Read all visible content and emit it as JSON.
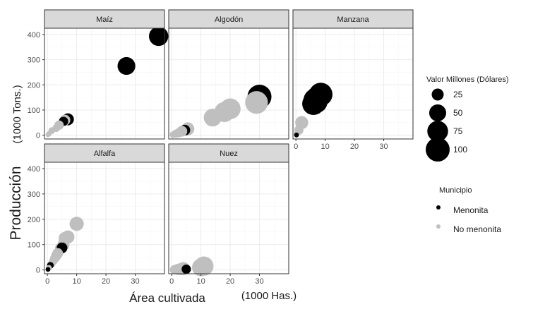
{
  "chart_data": {
    "type": "scatter",
    "xlabel": "Área cultivada",
    "xlabel_unit": "(1000 Has.)",
    "ylabel": "Producción",
    "ylabel_unit": "(1000 Tons.)",
    "xlim": [
      -1,
      40
    ],
    "ylim": [
      -15,
      425
    ],
    "x_ticks": [
      0,
      10,
      20,
      30
    ],
    "y_ticks": [
      0,
      100,
      200,
      300,
      400
    ],
    "grid": true,
    "colors": {
      "Menonita": "#000000",
      "No menonita": "#bfbfbf",
      "strip": "#d9d9d9",
      "border": "#333333",
      "grid_major": "#ebebeb"
    },
    "facets": [
      {
        "name": "Maíz",
        "points": [
          {
            "x": 38,
            "y": 393,
            "value": 65,
            "group": "Menonita"
          },
          {
            "x": 27,
            "y": 275,
            "value": 55,
            "group": "Menonita"
          },
          {
            "x": 7,
            "y": 63,
            "value": 25,
            "group": "Menonita"
          },
          {
            "x": 5.5,
            "y": 55,
            "value": 15,
            "group": "Menonita"
          },
          {
            "x": 6,
            "y": 60,
            "value": 20,
            "group": "No menonita"
          },
          {
            "x": 4,
            "y": 40,
            "value": 15,
            "group": "No menonita"
          },
          {
            "x": 3,
            "y": 28,
            "value": 10,
            "group": "No menonita"
          },
          {
            "x": 1.5,
            "y": 18,
            "value": 8,
            "group": "No menonita"
          },
          {
            "x": 0.5,
            "y": 5,
            "value": 5,
            "group": "No menonita"
          },
          {
            "x": 0.2,
            "y": 2,
            "value": 4,
            "group": "No menonita"
          }
        ]
      },
      {
        "name": "Algodón",
        "points": [
          {
            "x": 30,
            "y": 153,
            "value": 100,
            "group": "Menonita"
          },
          {
            "x": 29,
            "y": 130,
            "value": 90,
            "group": "No menonita"
          },
          {
            "x": 20,
            "y": 105,
            "value": 75,
            "group": "No menonita"
          },
          {
            "x": 18,
            "y": 92,
            "value": 70,
            "group": "No menonita"
          },
          {
            "x": 14,
            "y": 70,
            "value": 55,
            "group": "No menonita"
          },
          {
            "x": 5.5,
            "y": 25,
            "value": 30,
            "group": "No menonita"
          },
          {
            "x": 4.5,
            "y": 20,
            "value": 20,
            "group": "Menonita"
          },
          {
            "x": 3.5,
            "y": 16,
            "value": 20,
            "group": "No menonita"
          },
          {
            "x": 2.5,
            "y": 10,
            "value": 15,
            "group": "No menonita"
          },
          {
            "x": 1.5,
            "y": 6,
            "value": 12,
            "group": "No menonita"
          },
          {
            "x": 0.5,
            "y": 2,
            "value": 8,
            "group": "No menonita"
          }
        ]
      },
      {
        "name": "Manzana",
        "points": [
          {
            "x": 8.5,
            "y": 162,
            "value": 95,
            "group": "Menonita"
          },
          {
            "x": 7.5,
            "y": 150,
            "value": 92,
            "group": "Menonita"
          },
          {
            "x": 6.5,
            "y": 140,
            "value": 90,
            "group": "Menonita"
          },
          {
            "x": 6,
            "y": 125,
            "value": 88,
            "group": "Menonita"
          },
          {
            "x": 7,
            "y": 132,
            "value": 85,
            "group": "Menonita"
          },
          {
            "x": 2,
            "y": 50,
            "value": 30,
            "group": "No menonita"
          },
          {
            "x": 1,
            "y": 20,
            "value": 15,
            "group": "No menonita"
          },
          {
            "x": 0.3,
            "y": 5,
            "value": 6,
            "group": "No menonita"
          },
          {
            "x": 0.2,
            "y": 1,
            "value": 4,
            "group": "Menonita"
          }
        ]
      },
      {
        "name": "Alfalfa",
        "points": [
          {
            "x": 10,
            "y": 182,
            "value": 35,
            "group": "No menonita"
          },
          {
            "x": 7,
            "y": 130,
            "value": 30,
            "group": "No menonita"
          },
          {
            "x": 6,
            "y": 125,
            "value": 28,
            "group": "No menonita"
          },
          {
            "x": 5.5,
            "y": 100,
            "value": 25,
            "group": "No menonita"
          },
          {
            "x": 5,
            "y": 87,
            "value": 20,
            "group": "Menonita"
          },
          {
            "x": 4.5,
            "y": 85,
            "value": 22,
            "group": "No menonita"
          },
          {
            "x": 3.5,
            "y": 65,
            "value": 20,
            "group": "No menonita"
          },
          {
            "x": 3,
            "y": 55,
            "value": 18,
            "group": "No menonita"
          },
          {
            "x": 2.5,
            "y": 45,
            "value": 15,
            "group": "No menonita"
          },
          {
            "x": 2,
            "y": 35,
            "value": 12,
            "group": "No menonita"
          },
          {
            "x": 1.5,
            "y": 25,
            "value": 10,
            "group": "No menonita"
          },
          {
            "x": 1,
            "y": 18,
            "value": 8,
            "group": "Menonita"
          },
          {
            "x": 0.5,
            "y": 8,
            "value": 6,
            "group": "No menonita"
          },
          {
            "x": 0.2,
            "y": 2,
            "value": 4,
            "group": "Menonita"
          }
        ]
      },
      {
        "name": "Nuez",
        "points": [
          {
            "x": 11,
            "y": 15,
            "value": 65,
            "group": "No menonita"
          },
          {
            "x": 10,
            "y": 10,
            "value": 55,
            "group": "No menonita"
          },
          {
            "x": 5,
            "y": 3,
            "value": 15,
            "group": "Menonita"
          },
          {
            "x": 4,
            "y": 5,
            "value": 30,
            "group": "No menonita"
          },
          {
            "x": 3,
            "y": 3,
            "value": 25,
            "group": "No menonita"
          },
          {
            "x": 2,
            "y": 2,
            "value": 20,
            "group": "No menonita"
          },
          {
            "x": 1,
            "y": 1,
            "value": 15,
            "group": "No menonita"
          }
        ]
      }
    ],
    "legend_size": {
      "title": "Valor Millones  (Dólares)",
      "entries": [
        {
          "value": 25,
          "label": "25"
        },
        {
          "value": 50,
          "label": "50"
        },
        {
          "value": 75,
          "label": "75"
        },
        {
          "value": 100,
          "label": "100"
        }
      ]
    },
    "legend_color": {
      "title": "Municipio",
      "entries": [
        {
          "group": "Menonita",
          "label": "Menonita"
        },
        {
          "group": "No menonita",
          "label": "No menonita"
        }
      ]
    },
    "legend_placement": "right"
  }
}
